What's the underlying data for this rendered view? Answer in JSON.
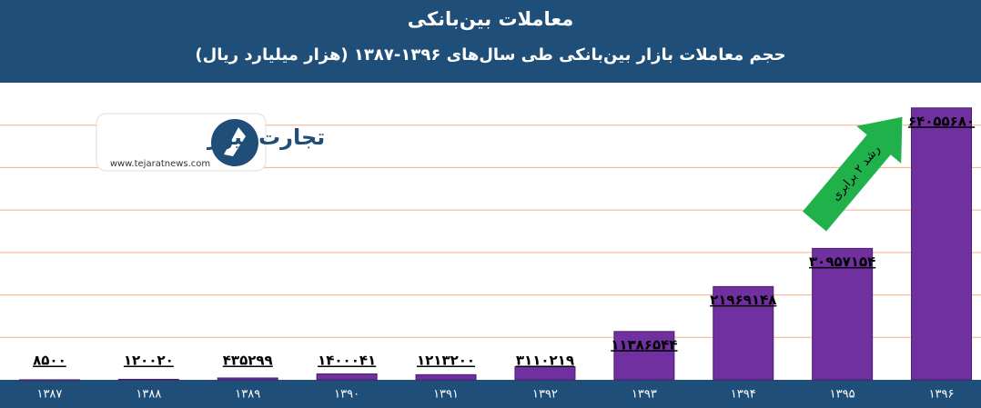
{
  "chart_data": {
    "type": "bar",
    "title": "معاملات بین‌بانکی",
    "subtitle": "حجم معاملات بازار بین‌بانکی طی سال‌های ۱۳۹۶-۱۳۸۷ (هزار میلیارد ریال)",
    "categories": [
      "۱۳۸۷",
      "۱۳۸۸",
      "۱۳۸۹",
      "۱۳۹۰",
      "۱۳۹۱",
      "۱۳۹۲",
      "۱۳۹۳",
      "۱۳۹۴",
      "۱۳۹۵",
      "۱۳۹۶"
    ],
    "values": [
      8500,
      120020,
      435299,
      1400041,
      1213200,
      3110219,
      11386544,
      21969148,
      30957154,
      64055680
    ],
    "value_labels": [
      "۸۵۰۰",
      "۱۲۰۰۲۰",
      "۴۳۵۲۹۹",
      "۱۴۰۰۰۴۱",
      "۱۲۱۳۲۰۰",
      "۳۱۱۰۲۱۹",
      "۱۱۳۸۶۵۴۴",
      "۲۱۹۶۹۱۴۸",
      "۳۰۹۵۷۱۵۴",
      "۶۴۰۵۵۶۸۰"
    ],
    "color": "#7030a0",
    "ylim": [
      0,
      70000000
    ],
    "yticks": [
      10000000,
      20000000,
      30000000,
      40000000,
      50000000,
      60000000
    ],
    "grid": true,
    "annotation": "رشد ۲ برابری",
    "logo": {
      "name": "تجارت نیوز",
      "url": "www.tejaratnews.com"
    }
  }
}
